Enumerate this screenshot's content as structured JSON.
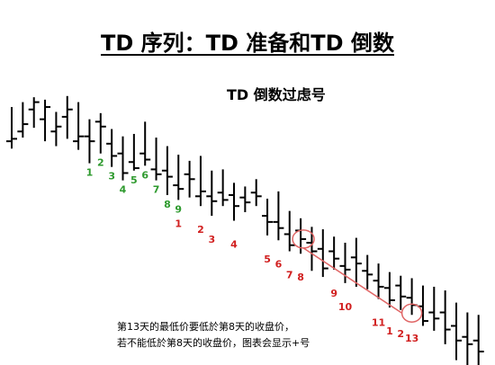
{
  "title": "TD 序列：TD 准备和TD 倒数",
  "subtitle": "TD 倒数过虑号",
  "note": {
    "line1": "第13天的最低价要低於第8天的收盘价，",
    "line2": "若不能低於第8天的收盘价，图表会显示+号"
  },
  "colors": {
    "bar": "#000000",
    "setup": "#2e9a2e",
    "countdown": "#d11f1f",
    "highlight": "#e06666"
  },
  "chart_data": {
    "type": "ohlc",
    "ylim": [
      0,
      100
    ],
    "bars": [
      {
        "h": 86,
        "l": 52,
        "o": 58,
        "c": 60
      },
      {
        "h": 90,
        "l": 61,
        "o": 66,
        "c": 72
      },
      {
        "h": 94,
        "l": 69,
        "o": 84,
        "c": 90
      },
      {
        "h": 92,
        "l": 58,
        "o": 76,
        "c": 86
      },
      {
        "h": 82,
        "l": 54,
        "o": 66,
        "c": 70
      },
      {
        "h": 95,
        "l": 60,
        "o": 78,
        "c": 84
      },
      {
        "h": 90,
        "l": 51,
        "o": 58,
        "c": 62
      },
      {
        "h": 76,
        "l": 40,
        "o": 62,
        "c": 58
      },
      {
        "h": 81,
        "l": 48,
        "o": 74,
        "c": 70
      },
      {
        "h": 68,
        "l": 37,
        "o": 56,
        "c": 46
      },
      {
        "h": 62,
        "l": 26,
        "o": 48,
        "c": 32
      },
      {
        "h": 64,
        "l": 34,
        "o": 41,
        "c": 36
      },
      {
        "h": 74,
        "l": 38,
        "o": 48,
        "c": 43
      },
      {
        "h": 61,
        "l": 26,
        "o": 35,
        "c": 31
      },
      {
        "h": 54,
        "l": 14,
        "o": 34,
        "c": 29
      },
      {
        "h": 47,
        "l": 10,
        "o": 22,
        "c": 19
      },
      {
        "h": 42,
        "l": 12,
        "o": 31,
        "c": 27
      },
      {
        "h": 46,
        "l": 5,
        "o": 13,
        "c": 17
      },
      {
        "h": 34,
        "l": -3,
        "o": 13,
        "c": 9
      },
      {
        "h": 35,
        "l": 5,
        "o": 16,
        "c": 10
      },
      {
        "h": 24,
        "l": -7,
        "o": 14,
        "c": 5
      },
      {
        "h": 21,
        "l": 0,
        "o": 12,
        "c": 8
      },
      {
        "h": 27,
        "l": 5,
        "o": 16,
        "c": 13
      },
      {
        "h": 11,
        "l": -19,
        "o": -3,
        "c": -8
      },
      {
        "h": 17,
        "l": -23,
        "o": -8,
        "c": -13
      },
      {
        "h": 1,
        "l": -32,
        "o": -18,
        "c": -27
      },
      {
        "h": -5,
        "l": -34,
        "o": -15,
        "c": -22
      },
      {
        "h": -12,
        "l": -48,
        "o": -25,
        "c": -32
      },
      {
        "h": -14,
        "l": -53,
        "o": -30,
        "c": -46
      },
      {
        "h": -20,
        "l": -47,
        "o": -32,
        "c": -38
      },
      {
        "h": -25,
        "l": -58,
        "o": -44,
        "c": -47
      },
      {
        "h": -21,
        "l": -61,
        "o": -37,
        "c": -42
      },
      {
        "h": -35,
        "l": -63,
        "o": -48,
        "c": -51
      },
      {
        "h": -42,
        "l": -71,
        "o": -56,
        "c": -61
      },
      {
        "h": -49,
        "l": -78,
        "o": -62,
        "c": -72
      },
      {
        "h": -52,
        "l": -80,
        "o": -60,
        "c": -69
      },
      {
        "h": -54,
        "l": -84,
        "o": -70,
        "c": -76
      },
      {
        "h": -60,
        "l": -93,
        "o": -77,
        "c": -89
      },
      {
        "h": -61,
        "l": -97,
        "o": -82,
        "c": -87
      },
      {
        "h": -64,
        "l": -108,
        "o": -82,
        "c": -96
      },
      {
        "h": -74,
        "l": -121,
        "o": -93,
        "c": -105
      },
      {
        "h": -82,
        "l": -128,
        "o": -102,
        "c": -108
      },
      {
        "h": -84,
        "l": -135,
        "o": -105,
        "c": -114
      }
    ],
    "setup_labels": [
      {
        "bar": 7,
        "text": "1"
      },
      {
        "bar": 8,
        "text": "2"
      },
      {
        "bar": 9,
        "text": "3"
      },
      {
        "bar": 10,
        "text": "4"
      },
      {
        "bar": 11,
        "text": "5"
      },
      {
        "bar": 12,
        "text": "6"
      },
      {
        "bar": 13,
        "text": "7"
      },
      {
        "bar": 14,
        "text": "8"
      },
      {
        "bar": 15,
        "text": "9"
      }
    ],
    "countdown_labels": [
      {
        "bar": 15,
        "text": "1"
      },
      {
        "bar": 17,
        "text": "2"
      },
      {
        "bar": 18,
        "text": "3"
      },
      {
        "bar": 20,
        "text": "4"
      },
      {
        "bar": 23,
        "text": "5"
      },
      {
        "bar": 24,
        "text": "6"
      },
      {
        "bar": 25,
        "text": "7"
      },
      {
        "bar": 26,
        "text": "8"
      },
      {
        "bar": 29,
        "text": "9"
      },
      {
        "bar": 30,
        "text": "10"
      },
      {
        "bar": 33,
        "text": "11"
      },
      {
        "bar": 34,
        "text": "1"
      },
      {
        "bar": 35,
        "text": "2"
      },
      {
        "bar": 36,
        "text": "13"
      }
    ]
  }
}
